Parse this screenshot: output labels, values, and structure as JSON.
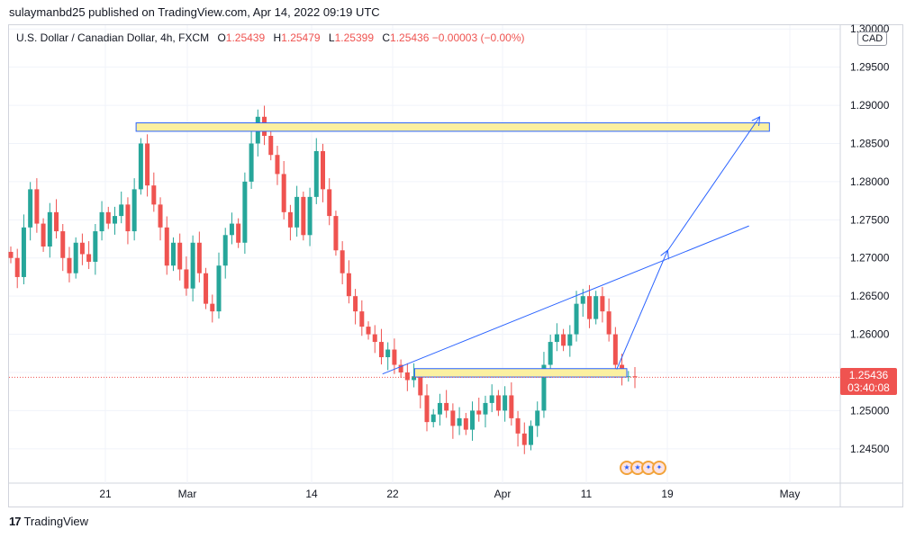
{
  "header": {
    "publish_text": "sulaymanbd25 published on TradingView.com, Apr 14, 2022 09:19 UTC"
  },
  "legend": {
    "symbol": "U.S. Dollar / Canadian Dollar, 4h, FXCM",
    "o_label": "O",
    "o_value": "1.25439",
    "h_label": "H",
    "h_value": "1.25479",
    "l_label": "L",
    "l_value": "1.25399",
    "c_label": "C",
    "c_value": "1.25436",
    "change": "−0.00003 (−0.00%)"
  },
  "currency_badge": "CAD",
  "last_price": {
    "price": "1.25436",
    "countdown": "03:40:08"
  },
  "footer": {
    "brand": "TradingView",
    "logo": "17"
  },
  "colors": {
    "up": "#26a69a",
    "down": "#ef5350",
    "zone_fill": "#fbf0a0",
    "zone_stroke": "#2962ff",
    "trend": "#2962ff",
    "grid": "#f0f3fa"
  },
  "chart_data": {
    "type": "candlestick",
    "y_ticks": [
      "1.24500",
      "1.25000",
      "1.25500",
      "1.26000",
      "1.26500",
      "1.27000",
      "1.27500",
      "1.28000",
      "1.28500",
      "1.29000",
      "1.29500",
      "1.30000"
    ],
    "x_ticks": [
      "21",
      "Mar",
      "14",
      "22",
      "Apr",
      "11",
      "19",
      "May"
    ],
    "ylim": [
      1.2405,
      1.3005
    ],
    "last_price": 1.25436,
    "zones": [
      {
        "name": "resistance",
        "x_start": "Feb 24",
        "x_end": "Apr 29",
        "y_low": 1.2866,
        "y_high": 1.2877
      },
      {
        "name": "support",
        "x_start": "Mar 24",
        "x_end": "Apr 15",
        "y_low": 1.2544,
        "y_high": 1.2555
      }
    ],
    "trendline": {
      "from": [
        "Mar 21",
        1.2548
      ],
      "to": [
        "Apr 27",
        1.2742
      ]
    },
    "projection_arrows": [
      {
        "from": [
          "Apr 14",
          1.2554
        ],
        "to": [
          "Apr 19",
          1.2709
        ]
      },
      {
        "from": [
          "Apr 19",
          1.2709
        ],
        "to": [
          "Apr 28",
          1.2884
        ]
      }
    ],
    "closes": [
      1.27,
      1.2675,
      1.274,
      1.279,
      1.2745,
      1.2715,
      1.276,
      1.2735,
      1.27,
      1.268,
      1.272,
      1.2705,
      1.2695,
      1.2735,
      1.276,
      1.2745,
      1.2755,
      1.277,
      1.2735,
      1.279,
      1.285,
      1.2795,
      1.277,
      1.274,
      1.269,
      1.272,
      1.2685,
      1.266,
      1.272,
      1.268,
      1.264,
      1.263,
      1.269,
      1.273,
      1.2745,
      1.272,
      1.28,
      1.285,
      1.2885,
      1.286,
      1.2835,
      1.281,
      1.276,
      1.274,
      1.278,
      1.273,
      1.278,
      1.284,
      1.279,
      1.2755,
      1.271,
      1.268,
      1.265,
      1.263,
      1.261,
      1.26,
      1.259,
      1.257,
      1.258,
      1.256,
      1.255,
      1.254,
      1.2545,
      1.252,
      1.2485,
      1.2495,
      1.251,
      1.25,
      1.248,
      1.249,
      1.2475,
      1.25,
      1.2495,
      1.251,
      1.252,
      1.25,
      1.252,
      1.249,
      1.247,
      1.2455,
      1.248,
      1.25,
      1.256,
      1.259,
      1.26,
      1.2585,
      1.26,
      1.264,
      1.265,
      1.262,
      1.265,
      1.263,
      1.26,
      1.256,
      1.2545,
      1.2545,
      1.2544
    ]
  }
}
